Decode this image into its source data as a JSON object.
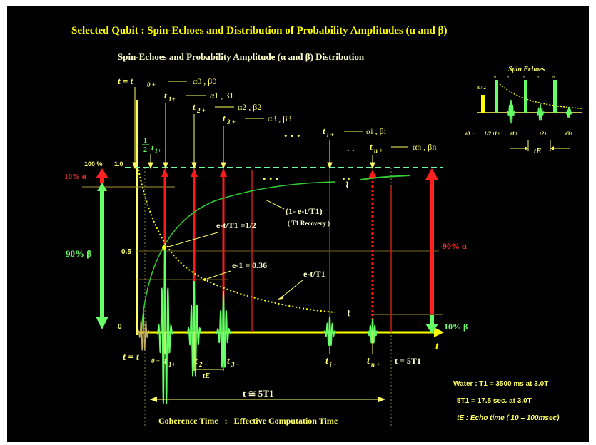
{
  "title": "Selected Qubit : Spin-Echoes and Distribution of Probability Amplitudes (α and β)",
  "subtitle": "Spin-Echoes and Probability Amplitude (α and β) Distribution",
  "colors": {
    "background": "#000000",
    "title": "#ffff00",
    "pulse": "#ff0000",
    "alpha": "#ff2020",
    "beta": "#66ff66",
    "recovery": "#33cc33",
    "decay": "#ffff00"
  },
  "axis": {
    "y_100": "100 %",
    "y_1": "1.0",
    "y_05": "0.5",
    "y_0": "0",
    "t_arrow": "t"
  },
  "top_labels": {
    "t0": "t = t",
    "t0_sub": "0 +",
    "a0b0": "α0 , β0",
    "t1": "t",
    "t1_sub": "1+",
    "a1b1": "α1 , β1",
    "t2": "t",
    "t2_sub": "2 +",
    "a2b2": "α2 , β2",
    "t3": "t",
    "t3_sub": "3 +",
    "a3b3": "α3 , β3",
    "ti": "t",
    "ti_sub": "i +",
    "aibi": "αi , βi",
    "tn": "t",
    "tn_sub": "n +",
    "anbn": "αn , βn",
    "half_num": "1",
    "half_den": "2",
    "half_t": "t",
    "half_sub": "1+",
    "dots": ". . ."
  },
  "left_labels": {
    "alpha10": "10% α",
    "beta90": "90% β"
  },
  "right_labels": {
    "alpha90": "90% α",
    "beta10": "10% β"
  },
  "curves": {
    "recovery": "(1- e-t/T1)",
    "recovery_sub": "( T1 Recovery )",
    "half": "e-t/T1 =1/2",
    "e_minus1": "e-1 = 0.36",
    "decay": "e-t/T1"
  },
  "bottom_labels": {
    "t0": "t = t",
    "t0_sub": "0 +",
    "t1": "t",
    "t1_sub": "1+",
    "t2": "t",
    "t2_sub": "2 +",
    "t3": "t",
    "t3_sub": "3 +",
    "tE": "tE",
    "ti": "t",
    "ti_sub": "i +",
    "tn": "t",
    "tn_sub": "n +",
    "t5": "t = 5T1",
    "tapprox": "t ≅ 5T1",
    "coherence": "Coherence Time   :   Effective Computation Time"
  },
  "notes": {
    "water": "Water :  T1 = 3500 ms at 3.0T",
    "five_t1": "5T1 = 17.5 sec.  at 3.0T",
    "te": "tE : Echo time ( 10 – 100msec)"
  },
  "inset": {
    "title": "Spin Echoes",
    "pi_half": "π / 2",
    "pi": "π",
    "t0": "t0 +",
    "half": "1/2 t1+",
    "t1": "t1+",
    "t2": "t2+",
    "t3": "t3+",
    "tE": "tE"
  }
}
